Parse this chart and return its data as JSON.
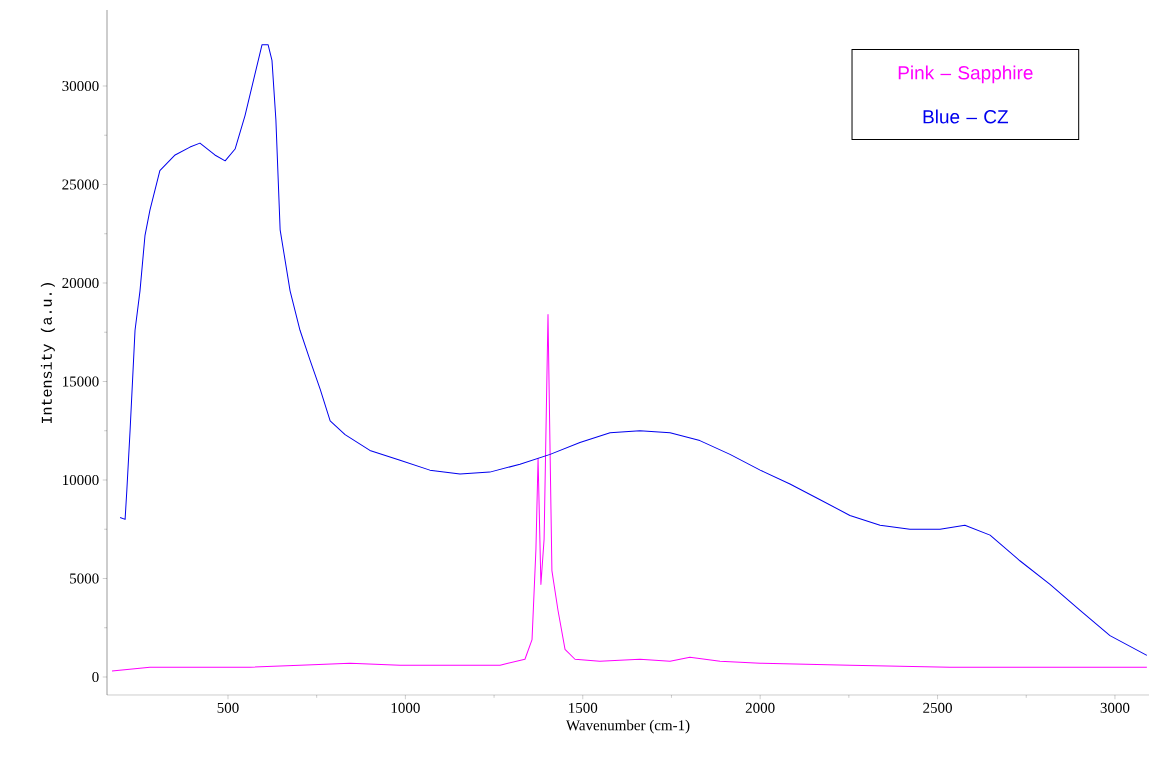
{
  "chart_data": {
    "type": "line",
    "xlabel": "Wavenumber (cm-1)",
    "ylabel": "Intensity (a.u.)",
    "xlim": [
      159,
      3096
    ],
    "ylim": [
      -914,
      33858
    ],
    "xticks": [
      500,
      1000,
      1500,
      2000,
      2500,
      3000
    ],
    "yticks": [
      0,
      5000,
      10000,
      15000,
      20000,
      25000,
      30000
    ],
    "legend": "top right",
    "series": [
      {
        "name": "Pink – Sapphire",
        "color": "#ff00ff",
        "x": [
          173,
          280,
          421,
          562,
          703,
          844,
          985,
          1126,
          1267,
          1337,
          1357,
          1368,
          1374,
          1382,
          1391,
          1402,
          1413,
          1430,
          1450,
          1478,
          1548,
          1661,
          1746,
          1802,
          1887,
          2000,
          2253,
          2535,
          2817,
          3090
        ],
        "values": [
          300,
          500,
          500,
          500,
          600,
          700,
          600,
          600,
          600,
          900,
          1900,
          6500,
          11100,
          4700,
          7000,
          18400,
          5400,
          3400,
          1400,
          900,
          800,
          900,
          800,
          1000,
          800,
          700,
          600,
          500,
          500,
          500
        ]
      },
      {
        "name": "Blue – CZ",
        "color": "#0000ee",
        "x": [
          196,
          210,
          215,
          224,
          238,
          252,
          266,
          280,
          308,
          351,
          393,
          421,
          463,
          492,
          520,
          548,
          576,
          596,
          613,
          624,
          635,
          647,
          675,
          703,
          731,
          760,
          788,
          830,
          900,
          985,
          1069,
          1154,
          1238,
          1323,
          1408,
          1492,
          1577,
          1661,
          1746,
          1830,
          1915,
          2000,
          2084,
          2169,
          2253,
          2338,
          2422,
          2507,
          2577,
          2648,
          2732,
          2817,
          2901,
          2986,
          3090
        ],
        "values": [
          8100,
          8000,
          9500,
          12500,
          17600,
          19600,
          22400,
          23700,
          25700,
          26500,
          26900,
          27100,
          26500,
          26200,
          26800,
          28500,
          30600,
          32100,
          32100,
          31300,
          28300,
          22700,
          19600,
          17600,
          16100,
          14600,
          13000,
          12300,
          11500,
          11000,
          10500,
          10300,
          10400,
          10800,
          11300,
          11900,
          12400,
          12500,
          12400,
          12000,
          11300,
          10500,
          9800,
          9000,
          8200,
          7700,
          7500,
          7500,
          7700,
          7200,
          5900,
          4700,
          3400,
          2100,
          1100
        ]
      }
    ]
  }
}
